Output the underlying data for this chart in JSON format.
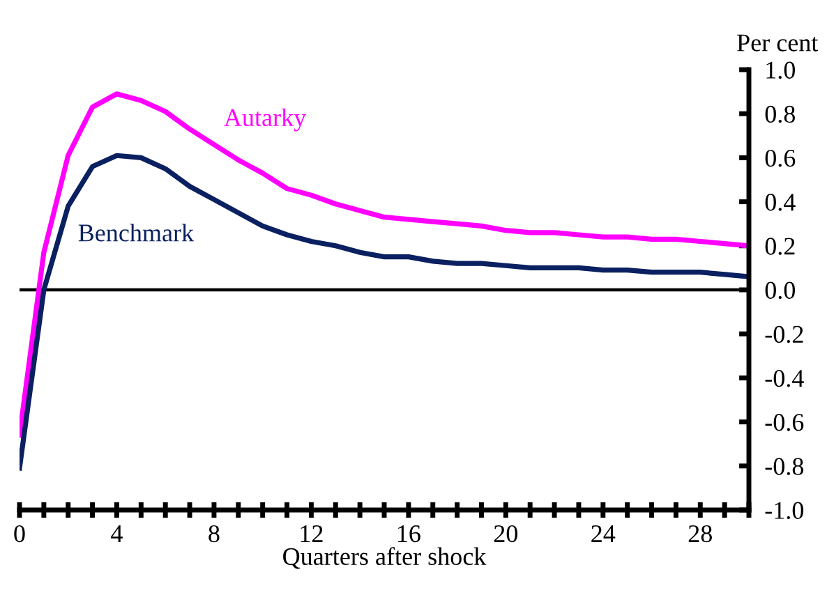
{
  "chart_data": {
    "type": "line",
    "ylabel": "Per cent",
    "xlabel": "Quarters after shock",
    "x": [
      0,
      1,
      2,
      3,
      4,
      5,
      6,
      7,
      8,
      9,
      10,
      11,
      12,
      13,
      14,
      15,
      16,
      17,
      18,
      19,
      20,
      21,
      22,
      23,
      24,
      25,
      26,
      27,
      28,
      29,
      30
    ],
    "series": [
      {
        "name": "Autarky",
        "color": "#ff00ff",
        "values": [
          -0.66,
          0.17,
          0.61,
          0.83,
          0.89,
          0.86,
          0.81,
          0.73,
          0.66,
          0.59,
          0.53,
          0.46,
          0.43,
          0.39,
          0.36,
          0.33,
          0.32,
          0.31,
          0.3,
          0.29,
          0.27,
          0.26,
          0.26,
          0.25,
          0.24,
          0.24,
          0.23,
          0.23,
          0.22,
          0.21,
          0.2
        ]
      },
      {
        "name": "Benchmark",
        "color": "#0a2060",
        "values": [
          -0.81,
          0.0,
          0.38,
          0.56,
          0.61,
          0.6,
          0.55,
          0.47,
          0.41,
          0.35,
          0.29,
          0.25,
          0.22,
          0.2,
          0.17,
          0.15,
          0.15,
          0.13,
          0.12,
          0.12,
          0.11,
          0.1,
          0.1,
          0.1,
          0.09,
          0.09,
          0.08,
          0.08,
          0.08,
          0.07,
          0.06
        ]
      }
    ],
    "xlim": [
      0,
      30
    ],
    "xticks": [
      0,
      {
        "value": 1,
        "label": null
      },
      {
        "value": 2,
        "label": null
      },
      {
        "value": 3,
        "label": null
      },
      4,
      {
        "value": 5,
        "label": null
      },
      {
        "value": 6,
        "label": null
      },
      {
        "value": 7,
        "label": null
      },
      8,
      {
        "value": 9,
        "label": null
      },
      {
        "value": 10,
        "label": null
      },
      {
        "value": 11,
        "label": null
      },
      12,
      {
        "value": 13,
        "label": null
      },
      {
        "value": 14,
        "label": null
      },
      {
        "value": 15,
        "label": null
      },
      16,
      {
        "value": 17,
        "label": null
      },
      {
        "value": 18,
        "label": null
      },
      {
        "value": 19,
        "label": null
      },
      20,
      {
        "value": 21,
        "label": null
      },
      {
        "value": 22,
        "label": null
      },
      {
        "value": 23,
        "label": null
      },
      24,
      {
        "value": 25,
        "label": null
      },
      {
        "value": 26,
        "label": null
      },
      {
        "value": 27,
        "label": null
      },
      28,
      {
        "value": 29,
        "label": null
      },
      {
        "value": 30,
        "label": null
      }
    ],
    "ylim": [
      -1.0,
      1.0
    ],
    "yticks": [
      {
        "value": -1,
        "label": "-1.0"
      },
      -0.8,
      -0.6,
      -0.4,
      -0.2,
      {
        "value": 0,
        "label": "0.0"
      },
      0.2,
      0.4,
      0.6,
      0.8,
      {
        "value": 1,
        "label": "1.0"
      }
    ],
    "ref_lines": [
      {
        "axis": "y",
        "value": 0,
        "color": "#000000"
      }
    ],
    "grid": false,
    "legend": false,
    "marker": "none",
    "line_style": "solid"
  }
}
